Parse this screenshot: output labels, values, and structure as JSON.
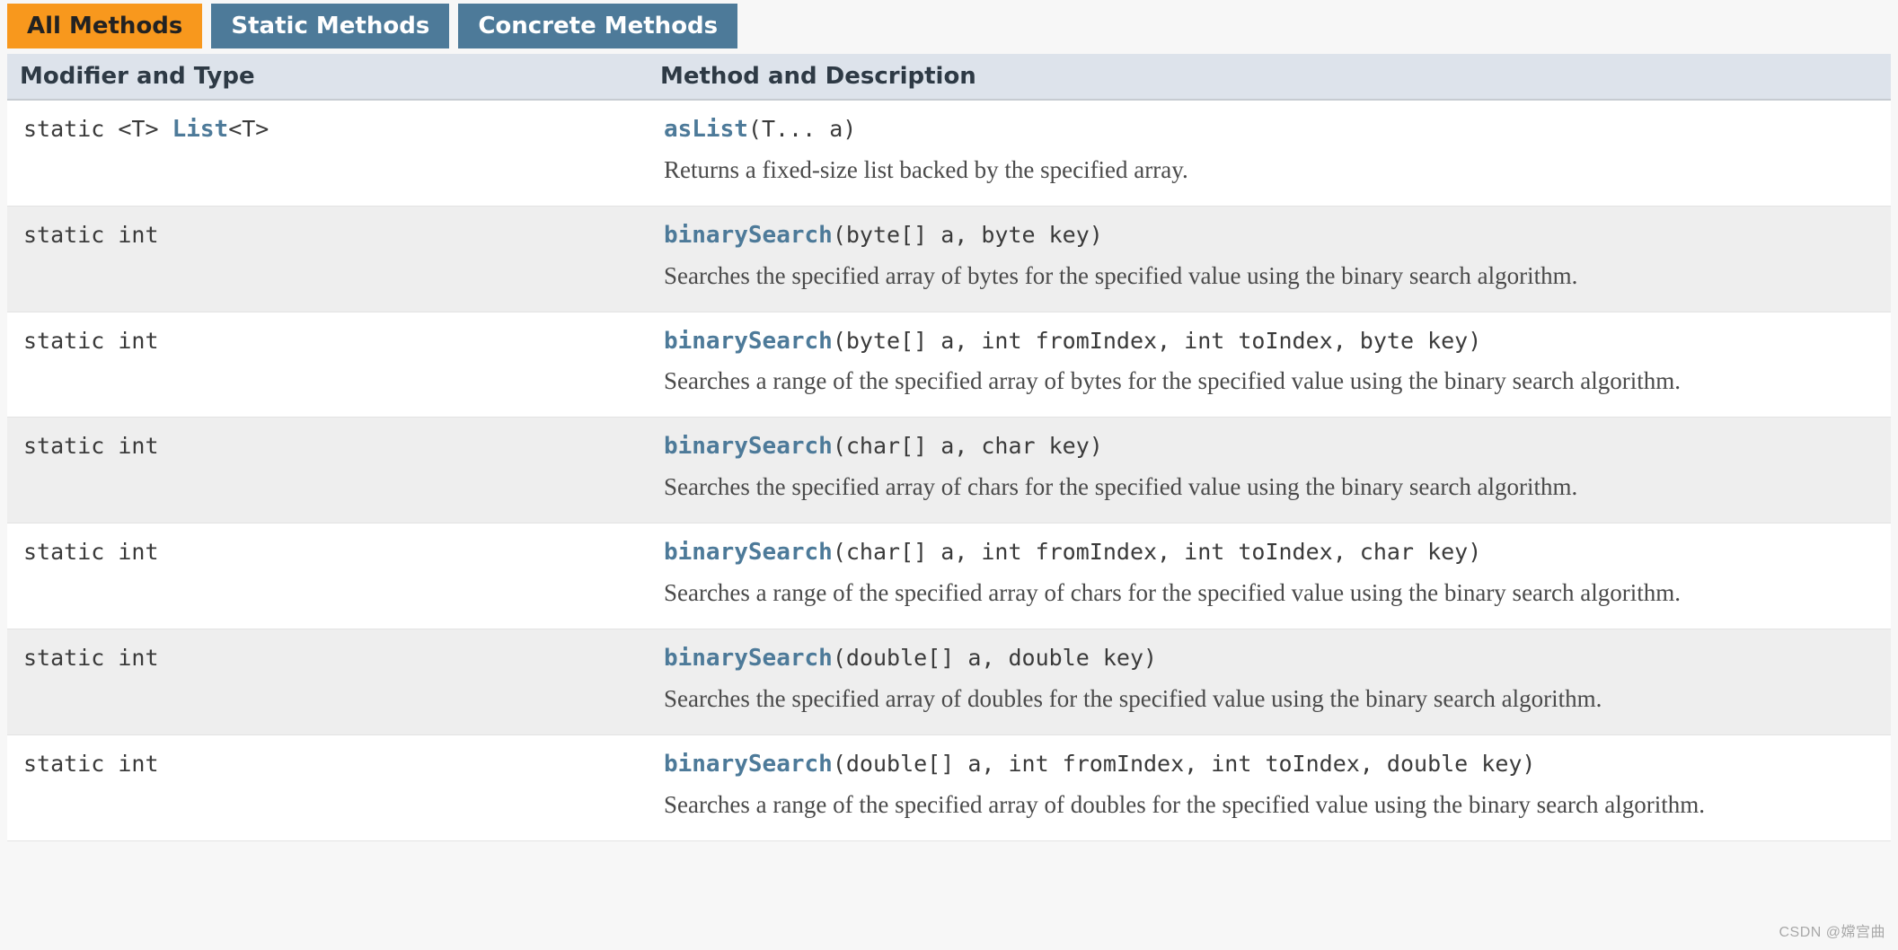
{
  "colors": {
    "tab_active_bg": "#f8981d",
    "tab_active_fg": "#222222",
    "tab_inactive_bg": "#4d7a99",
    "tab_inactive_fg": "#ffffff",
    "header_bg": "#dde3eb",
    "row_even_bg": "#ffffff",
    "row_odd_bg": "#eeeeee",
    "link_color": "#4d7a99",
    "body_text": "#464646"
  },
  "tabs": [
    {
      "label": "All Methods",
      "active": true
    },
    {
      "label": "Static Methods",
      "active": false
    },
    {
      "label": "Concrete Methods",
      "active": false
    }
  ],
  "columns": {
    "modifier": "Modifier and Type",
    "description": "Method and Description"
  },
  "methods": [
    {
      "modifier_prefix": "static <T> ",
      "modifier_link": "List",
      "modifier_suffix": "<T>",
      "method_name": "asList",
      "method_params": "(T... a)",
      "description": "Returns a fixed-size list backed by the specified array."
    },
    {
      "modifier_prefix": "static int",
      "modifier_link": "",
      "modifier_suffix": "",
      "method_name": "binarySearch",
      "method_params": "(byte[] a, byte key)",
      "description": "Searches the specified array of bytes for the specified value using the binary search algorithm."
    },
    {
      "modifier_prefix": "static int",
      "modifier_link": "",
      "modifier_suffix": "",
      "method_name": "binarySearch",
      "method_params": "(byte[] a, int fromIndex, int toIndex, byte key)",
      "description": "Searches a range of the specified array of bytes for the specified value using the binary search algorithm."
    },
    {
      "modifier_prefix": "static int",
      "modifier_link": "",
      "modifier_suffix": "",
      "method_name": "binarySearch",
      "method_params": "(char[] a, char key)",
      "description": "Searches the specified array of chars for the specified value using the binary search algorithm."
    },
    {
      "modifier_prefix": "static int",
      "modifier_link": "",
      "modifier_suffix": "",
      "method_name": "binarySearch",
      "method_params": "(char[] a, int fromIndex, int toIndex, char key)",
      "description": "Searches a range of the specified array of chars for the specified value using the binary search algorithm."
    },
    {
      "modifier_prefix": "static int",
      "modifier_link": "",
      "modifier_suffix": "",
      "method_name": "binarySearch",
      "method_params": "(double[] a, double key)",
      "description": "Searches the specified array of doubles for the specified value using the binary search algorithm."
    },
    {
      "modifier_prefix": "static int",
      "modifier_link": "",
      "modifier_suffix": "",
      "method_name": "binarySearch",
      "method_params": "(double[] a, int fromIndex, int toIndex, double key)",
      "description": "Searches a range of the specified array of doubles for the specified value using the binary search algorithm."
    }
  ],
  "watermark": "CSDN @嫦宫曲"
}
